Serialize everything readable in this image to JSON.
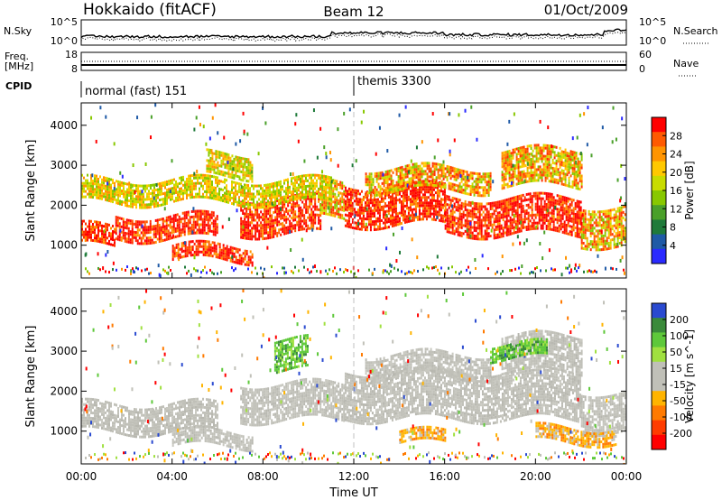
{
  "header": {
    "title_left": "Hokkaido (fitACF)",
    "title_center": "Beam 12",
    "title_right": "01/Oct/2009"
  },
  "strip_panels": {
    "nsky_label": "N.Sky",
    "nsky_ticks": [
      "10^5",
      "10^0"
    ],
    "nsearch_label": "N.Search",
    "nsearch_ticks": [
      "10^5",
      "10^0"
    ],
    "freq_label_line1": "Freq.",
    "freq_label_line2": "[MHz]",
    "freq_ticks": [
      "18",
      "8"
    ],
    "nave_label": "Nave",
    "nave_ticks": [
      "60",
      "0"
    ],
    "cpid_label": "CPID",
    "cpid_segments": [
      {
        "label": "normal (fast) 151",
        "start_hour": 0,
        "end_hour": 12
      },
      {
        "label": "themis 3300",
        "start_hour": 12,
        "end_hour": 24
      }
    ]
  },
  "x_axis": {
    "label": "Time UT",
    "ticks": [
      "00:00",
      "04:00",
      "08:00",
      "12:00",
      "16:00",
      "20:00",
      "00:00"
    ],
    "range_hours": [
      0,
      24
    ]
  },
  "chart_data": [
    {
      "type": "heatmap",
      "name": "power",
      "ylabel": "Slant Range [km]",
      "yticks": [
        "1000",
        "2000",
        "3000",
        "4000"
      ],
      "ylim": [
        180,
        4560
      ],
      "colorbar": {
        "label": "Power [dB]",
        "ticks": [
          "28",
          "24",
          "20",
          "16",
          "12",
          "8",
          "4"
        ],
        "colors": [
          "#ff0000",
          "#ff5a00",
          "#ff9400",
          "#ffc800",
          "#c8dc00",
          "#88c800",
          "#4aa02a",
          "#1f7a3a",
          "#1f5aa6",
          "#2a2aff"
        ]
      },
      "regions": [
        {
          "x": [
            0.0,
            1.5
          ],
          "y": [
            1000,
            1500
          ],
          "level": "high"
        },
        {
          "x": [
            1.5,
            6.0
          ],
          "y": [
            1150,
            1750
          ],
          "level": "high"
        },
        {
          "x": [
            4.0,
            7.5
          ],
          "y": [
            600,
            1000
          ],
          "level": "high"
        },
        {
          "x": [
            7.0,
            10.5
          ],
          "y": [
            1300,
            2200
          ],
          "level": "high"
        },
        {
          "x": [
            10.5,
            11.6
          ],
          "y": [
            1700,
            2600
          ],
          "level": "mid"
        },
        {
          "x": [
            11.6,
            16.0
          ],
          "y": [
            1500,
            2500
          ],
          "level": "high"
        },
        {
          "x": [
            16.0,
            22.0
          ],
          "y": [
            1300,
            2200
          ],
          "level": "high"
        },
        {
          "x": [
            18.5,
            22.0
          ],
          "y": [
            2500,
            3400
          ],
          "level": "mid"
        },
        {
          "x": [
            12.5,
            18.0
          ],
          "y": [
            2400,
            2950
          ],
          "level": "mid"
        },
        {
          "x": [
            22.0,
            24.0
          ],
          "y": [
            1000,
            2000
          ],
          "level": "mid"
        },
        {
          "x": [
            0.0,
            11.0
          ],
          "y": [
            2050,
            2650
          ],
          "level": "low"
        },
        {
          "x": [
            5.5,
            7.5
          ],
          "y": [
            2700,
            3300
          ],
          "level": "low"
        }
      ]
    },
    {
      "type": "heatmap",
      "name": "velocity",
      "ylabel": "Slant Range [km]",
      "yticks": [
        "1000",
        "2000",
        "3000",
        "4000"
      ],
      "ylim": [
        180,
        4560
      ],
      "colorbar": {
        "label": "Velocity [m s^-1]",
        "ticks": [
          "200",
          "100",
          "50",
          "15",
          "-15",
          "-50",
          "-100",
          "-200"
        ],
        "colors": [
          "#2a4ad0",
          "#3a8a3a",
          "#5ec83a",
          "#a0e040",
          "#c0c0b8",
          "#c0c0b8",
          "#ffb400",
          "#ff7a00",
          "#ff3c00",
          "#ff0000"
        ]
      },
      "regions": [
        {
          "x": [
            0.0,
            6.0
          ],
          "y": [
            1000,
            1700
          ],
          "level": "zero"
        },
        {
          "x": [
            4.0,
            7.5
          ],
          "y": [
            600,
            1000
          ],
          "level": "zero"
        },
        {
          "x": [
            7.0,
            11.6
          ],
          "y": [
            1300,
            2200
          ],
          "level": "zero"
        },
        {
          "x": [
            11.6,
            22.0
          ],
          "y": [
            1300,
            2500
          ],
          "level": "zero"
        },
        {
          "x": [
            18.5,
            22.0
          ],
          "y": [
            2500,
            3400
          ],
          "level": "zero"
        },
        {
          "x": [
            12.5,
            18.0
          ],
          "y": [
            2400,
            2950
          ],
          "level": "zero"
        },
        {
          "x": [
            22.0,
            24.0
          ],
          "y": [
            1000,
            2000
          ],
          "level": "zero"
        },
        {
          "x": [
            8.5,
            10.0
          ],
          "y": [
            2500,
            3300
          ],
          "level": "pos"
        },
        {
          "x": [
            18.0,
            20.5
          ],
          "y": [
            2800,
            3200
          ],
          "level": "pos"
        },
        {
          "x": [
            14.0,
            16.0
          ],
          "y": [
            700,
            1000
          ],
          "level": "neg"
        },
        {
          "x": [
            20.0,
            23.5
          ],
          "y": [
            700,
            1100
          ],
          "level": "neg"
        }
      ]
    }
  ]
}
